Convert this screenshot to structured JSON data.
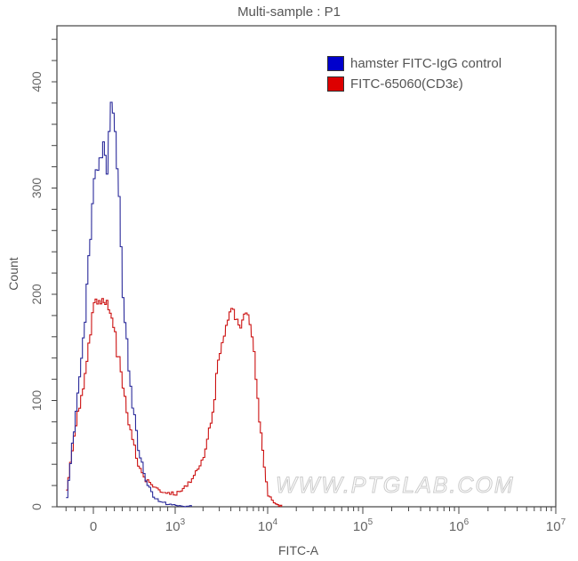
{
  "chart_data": {
    "type": "line",
    "title": "Multi-sample : P1",
    "xlabel": "FITC-A",
    "ylabel": "Count",
    "x_scale": "biexponential (log)",
    "x_ticks": [
      "0",
      "10^3",
      "10^4",
      "10^5",
      "10^6",
      "10^7"
    ],
    "y_ticks": [
      0,
      100,
      200,
      300,
      400
    ],
    "ylim": [
      0,
      450
    ],
    "legend_position": "top-right",
    "series": [
      {
        "name": "hamster FITC-IgG control",
        "color": "#0000cc",
        "peak_x": "~1.5e2",
        "peak_y": 375,
        "points": [
          [
            -300,
            10
          ],
          [
            -200,
            90
          ],
          [
            -100,
            180
          ],
          [
            0,
            310
          ],
          [
            60,
            340
          ],
          [
            100,
            320
          ],
          [
            150,
            375
          ],
          [
            200,
            360
          ],
          [
            250,
            290
          ],
          [
            300,
            200
          ],
          [
            400,
            110
          ],
          [
            500,
            55
          ],
          [
            600,
            25
          ],
          [
            700,
            10
          ],
          [
            800,
            4
          ],
          [
            1000,
            1
          ],
          [
            1500,
            0
          ]
        ]
      },
      {
        "name": "FITC-65060(CD3ε)",
        "color": "#dd0000",
        "peak1_y": 198,
        "peak2_x": "~5e3",
        "peak2_y": 187,
        "points": [
          [
            -300,
            15
          ],
          [
            -200,
            80
          ],
          [
            -100,
            120
          ],
          [
            0,
            195
          ],
          [
            50,
            198
          ],
          [
            100,
            190
          ],
          [
            200,
            160
          ],
          [
            300,
            110
          ],
          [
            400,
            70
          ],
          [
            500,
            40
          ],
          [
            600,
            25
          ],
          [
            800,
            15
          ],
          [
            1000,
            12
          ],
          [
            1500,
            25
          ],
          [
            2000,
            45
          ],
          [
            2500,
            90
          ],
          [
            3000,
            150
          ],
          [
            3500,
            175
          ],
          [
            4000,
            182
          ],
          [
            5000,
            175
          ],
          [
            6000,
            187
          ],
          [
            7000,
            140
          ],
          [
            8000,
            80
          ],
          [
            9000,
            40
          ],
          [
            10000,
            10
          ],
          [
            12000,
            2
          ],
          [
            14000,
            0
          ]
        ]
      }
    ]
  },
  "title": "Multi-sample : P1",
  "legend": [
    {
      "label": "hamster FITC-IgG control",
      "color": "#0000cc"
    },
    {
      "label": "FITC-65060(CD3ε)",
      "color": "#dd0000"
    }
  ],
  "axes": {
    "x_label": "FITC-A",
    "y_label": "Count",
    "y_tick_labels": [
      "0",
      "100",
      "200",
      "300",
      "400"
    ],
    "x_tick_labels": [
      {
        "base": "0",
        "exp": ""
      },
      {
        "base": "10",
        "exp": "3"
      },
      {
        "base": "10",
        "exp": "4"
      },
      {
        "base": "10",
        "exp": "5"
      },
      {
        "base": "10",
        "exp": "6"
      },
      {
        "base": "10",
        "exp": "7"
      }
    ]
  },
  "watermark": "WWW.PTGLAB.COM"
}
